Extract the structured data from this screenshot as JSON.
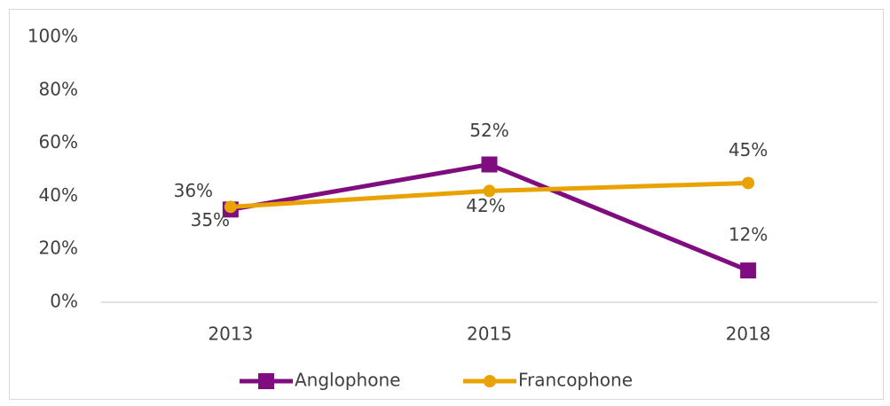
{
  "chart_data": {
    "type": "line",
    "categories": [
      "2013",
      "2015",
      "2018"
    ],
    "series": [
      {
        "name": "Anglophone",
        "color": "#7f0d7f",
        "marker": "square",
        "values": [
          35,
          52,
          12
        ],
        "value_labels": [
          "35%",
          "52%",
          "12%"
        ]
      },
      {
        "name": "Francophone",
        "color": "#e8a202",
        "marker": "circle",
        "values": [
          36,
          42,
          45
        ],
        "value_labels": [
          "36%",
          "42%",
          "45%"
        ]
      }
    ],
    "ylim": [
      0,
      100
    ],
    "yticks": [
      {
        "value": 0,
        "label": "0%"
      },
      {
        "value": 20,
        "label": "20%"
      },
      {
        "value": 40,
        "label": "40%"
      },
      {
        "value": 60,
        "label": "60%"
      },
      {
        "value": 80,
        "label": "80%"
      },
      {
        "value": 100,
        "label": "100%"
      }
    ],
    "grid": false,
    "legend": "bottom"
  }
}
